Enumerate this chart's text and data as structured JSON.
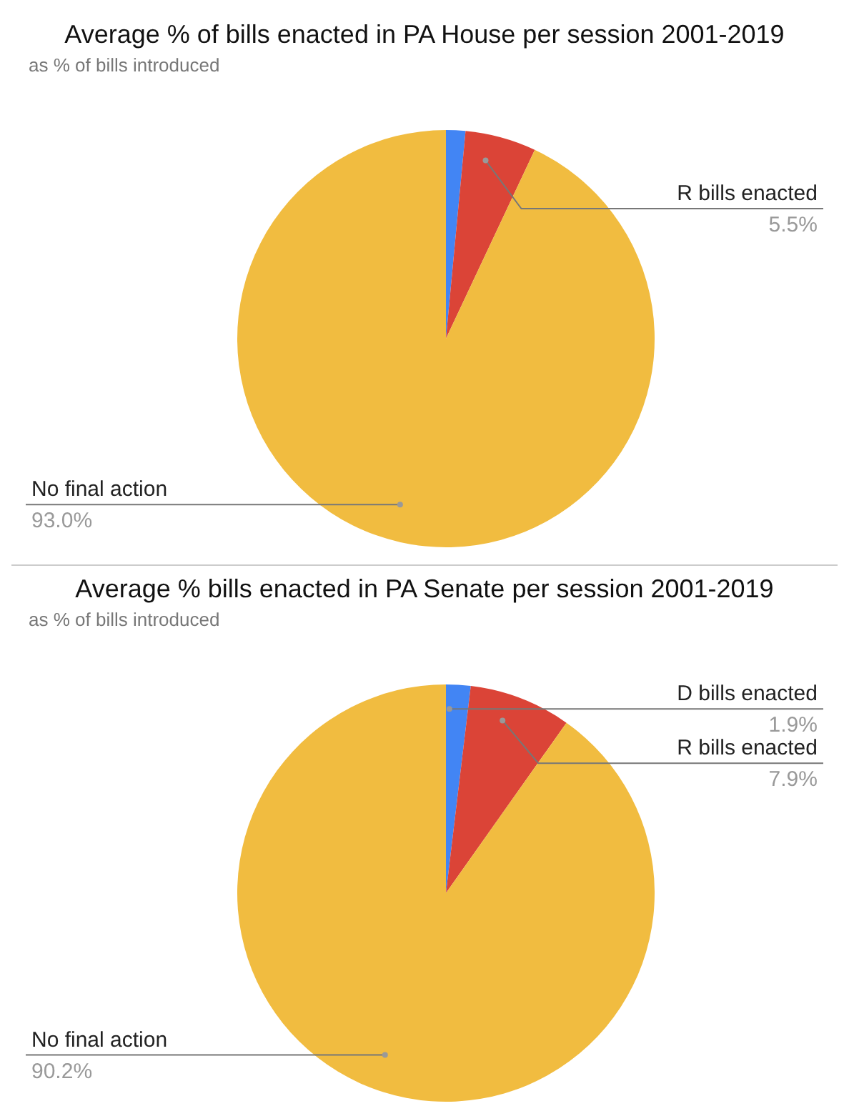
{
  "chart_data": [
    {
      "type": "pie",
      "title": "Average % of bills enacted in PA House per session 2001-2019",
      "subtitle": "as % of bills introduced",
      "categories": [
        null,
        "R bills enacted",
        "No final action"
      ],
      "values": [
        1.5,
        5.5,
        93.0
      ],
      "value_labels": [
        null,
        "5.5%",
        "93.0%"
      ],
      "colors": [
        "#4285f4",
        "#db4437",
        "#f1bc40"
      ],
      "legend": false
    },
    {
      "type": "pie",
      "title": "Average % bills enacted in PA Senate per session 2001-2019",
      "subtitle": "as % of bills introduced",
      "categories": [
        "D bills enacted",
        "R bills enacted",
        "No final action"
      ],
      "values": [
        1.9,
        7.9,
        90.2
      ],
      "value_labels": [
        "1.9%",
        "7.9%",
        "90.2%"
      ],
      "colors": [
        "#4285f4",
        "#db4437",
        "#f1bc40"
      ],
      "legend": false
    }
  ]
}
